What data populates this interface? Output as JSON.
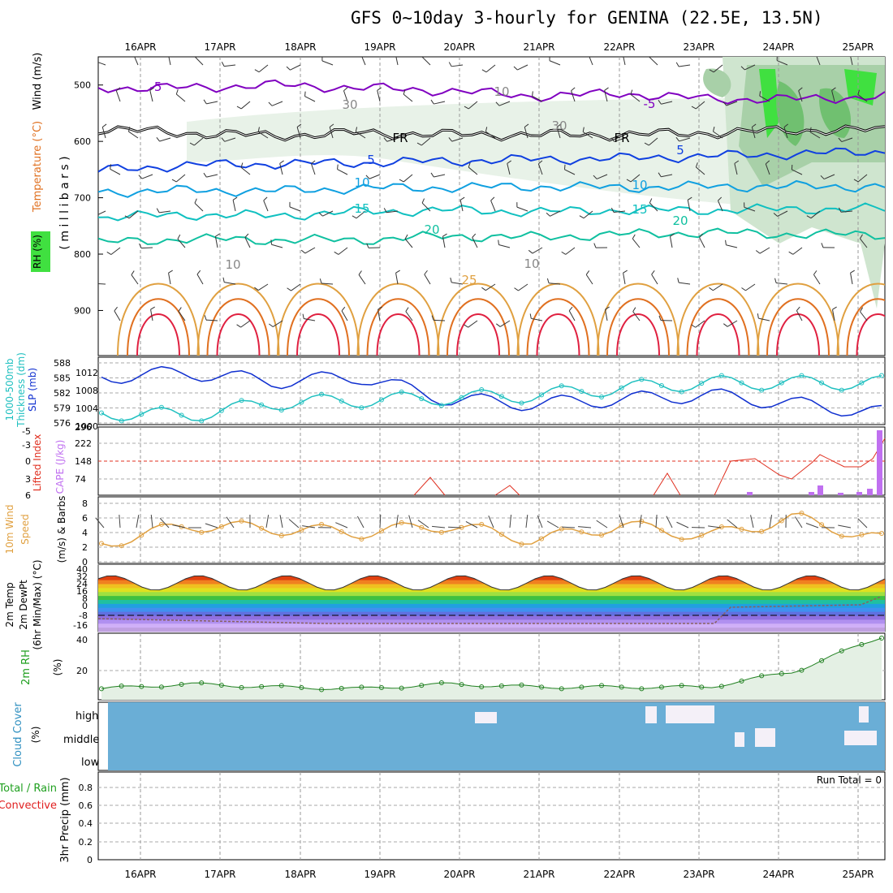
{
  "title": "GFS 0~10day 3-hourly for GENINA (22.5E, 13.5N)",
  "dates": [
    "16APR",
    "17APR",
    "18APR",
    "19APR",
    "20APR",
    "21APR",
    "22APR",
    "23APR",
    "24APR",
    "25APR"
  ],
  "colors": {
    "purple": "#8000c0",
    "black": "#000000",
    "blue": "#1040e0",
    "lightblue": "#10a0e0",
    "teal": "#10c0c0",
    "green_teal": "#10c0a0",
    "orange": "#e0a040",
    "darkorange": "#e07020",
    "red": "#e02040",
    "rh_green": "#40e040",
    "slp_blue": "#1030d0",
    "thick_cyan": "#20c0c0",
    "li_red": "#e03020",
    "cape_purple": "#c070f0",
    "wind_orange": "#e0a040",
    "rh2m_green": "#208020",
    "cloud_blue": "#6aaed6",
    "cloud_white": "#f4f0f8"
  },
  "panels": {
    "upper": {
      "ylabel_wind": "Wind (m/s)",
      "ylabel_temp": "Temperature (°C)",
      "ylabel_rh": "RH (%)",
      "ylabel_p": "( m i l l i b a r s )",
      "yticks": [
        "500",
        "600",
        "700",
        "800",
        "900"
      ],
      "contour_labels": [
        "-5",
        "-5",
        "FR",
        "FR",
        "5",
        "5",
        "10",
        "10",
        "15",
        "15",
        "20",
        "20",
        "25",
        "10",
        "30",
        "30",
        "10",
        "10"
      ]
    },
    "slp": {
      "ylabel_a": "1000-500mb",
      "ylabel_b": "Thickness (dm)",
      "ylabel_c": "SLP (mb)",
      "left_ticks": [
        "588",
        "585",
        "582",
        "579",
        "576"
      ],
      "right_ticks": [
        "1012",
        "1008",
        "1004",
        "1000"
      ]
    },
    "cape": {
      "ylabel_a": "Lifted Index",
      "ylabel_b": "CAPE (J/kg)",
      "left_ticks": [
        "-5",
        "-3",
        "0",
        "3",
        "6"
      ],
      "right_ticks": [
        "296",
        "222",
        "148",
        "74"
      ]
    },
    "wind10": {
      "ylabel_a": "10m Wind",
      "ylabel_b": "Speed",
      "ylabel_c": "(m/s) & Barbs",
      "ticks": [
        "8",
        "6",
        "4",
        "2",
        "0"
      ]
    },
    "temp2m": {
      "ylabel_a": "2m Temp",
      "ylabel_b": "2m DewPt",
      "ylabel_c": "(6hr Min/Max) (°C)",
      "ticks": [
        "40",
        "32",
        "24",
        "16",
        "8",
        "0",
        "-8",
        "-16"
      ]
    },
    "rh2m": {
      "ylabel": "2m RH",
      "unit": "(%)",
      "ticks": [
        "40",
        "20"
      ]
    },
    "cloud": {
      "ylabel": "Cloud Cover",
      "unit": "(%)",
      "levels": [
        "high",
        "middle",
        "low"
      ]
    },
    "precip": {
      "ylabel_a": "Total / Rain",
      "ylabel_b": "Convective",
      "ylabel_c": "3hr Precip (mm)",
      "ticks": [
        "0.8",
        "0.6",
        "0.4",
        "0.2",
        "0"
      ],
      "run_total": "Run Total = 0"
    }
  },
  "chart_data": [
    {
      "type": "line",
      "name": "pressure-time cross section",
      "x": [
        "16APR",
        "17APR",
        "18APR",
        "19APR",
        "20APR",
        "21APR",
        "22APR",
        "23APR",
        "24APR",
        "25APR"
      ],
      "ylabel": "millibars",
      "ylim": [
        980,
        450
      ],
      "series": [
        {
          "name": "-5",
          "values": [
            505,
            505,
            500,
            505,
            510,
            520,
            515,
            525,
            525,
            520
          ]
        },
        {
          "name": "FR",
          "values": [
            578,
            585,
            590,
            585,
            588,
            588,
            588,
            585,
            580,
            580
          ]
        },
        {
          "name": "5",
          "values": [
            652,
            642,
            640,
            638,
            635,
            632,
            630,
            626,
            622,
            618
          ]
        },
        {
          "name": "10",
          "values": [
            690,
            687,
            688,
            683,
            682,
            680,
            682,
            680,
            680,
            680
          ]
        },
        {
          "name": "15",
          "values": [
            735,
            730,
            732,
            725,
            722,
            725,
            722,
            722,
            720,
            720
          ]
        },
        {
          "name": "20",
          "values": [
            780,
            773,
            775,
            775,
            768,
            770,
            765,
            762,
            765,
            765
          ]
        }
      ]
    },
    {
      "type": "line",
      "name": "thickness-slp",
      "x": [
        "16APR",
        "17APR",
        "18APR",
        "19APR",
        "20APR",
        "21APR",
        "22APR",
        "23APR",
        "24APR",
        "25APR"
      ],
      "series": [
        {
          "name": "SLP (mb)",
          "values": [
            1011,
            1012,
            1010,
            1011,
            1006,
            1005,
            1006,
            1007,
            1005,
            1003
          ]
        },
        {
          "name": "1000-500mb Thickness (dm)",
          "values": [
            578,
            577.5,
            580,
            580.5,
            581,
            581.5,
            583,
            584,
            584,
            584
          ]
        }
      ]
    },
    {
      "type": "line",
      "name": "lifted-index",
      "x": [
        "23APR",
        "24APR",
        "25APR"
      ],
      "series": [
        {
          "name": "Lifted Index",
          "values": [
            0,
            1,
            -0.5
          ]
        }
      ]
    },
    {
      "type": "line",
      "name": "10m wind speed",
      "x": [
        "16APR",
        "17APR",
        "18APR",
        "19APR",
        "20APR",
        "21APR",
        "22APR",
        "23APR",
        "24APR",
        "25APR"
      ],
      "ylim": [
        0,
        8
      ],
      "series": [
        {
          "name": "Speed",
          "values": [
            2.5,
            5,
            4.5,
            4,
            5,
            3,
            5,
            3.5,
            6,
            3
          ]
        }
      ]
    },
    {
      "type": "line",
      "name": "2m RH",
      "x": [
        "16APR",
        "17APR",
        "18APR",
        "19APR",
        "20APR",
        "21APR",
        "22APR",
        "23APR",
        "24APR",
        "25APR"
      ],
      "ylim": [
        0,
        40
      ],
      "series": [
        {
          "name": "2m RH",
          "values": [
            7,
            10,
            8,
            7,
            10,
            8,
            8,
            8,
            18,
            40
          ]
        }
      ]
    },
    {
      "type": "table",
      "name": "3hr precip",
      "values": [
        0,
        0,
        0,
        0,
        0,
        0,
        0,
        0,
        0,
        0
      ],
      "ylim": [
        0,
        0.9
      ]
    }
  ]
}
